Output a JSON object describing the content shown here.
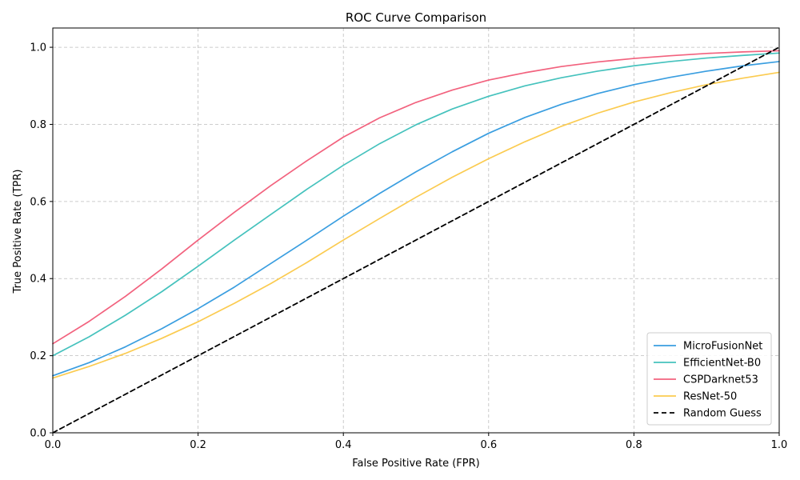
{
  "chart_data": {
    "type": "line",
    "title": "ROC Curve Comparison",
    "xlabel": "False Positive Rate (FPR)",
    "ylabel": "True Positive Rate (TPR)",
    "xlim": [
      0,
      1
    ],
    "ylim": [
      0,
      1.05
    ],
    "xticks": [
      "0.0",
      "0.2",
      "0.4",
      "0.6",
      "0.8",
      "1.0"
    ],
    "yticks": [
      "0.0",
      "0.2",
      "0.4",
      "0.6",
      "0.8",
      "1.0"
    ],
    "grid": true,
    "legend_position": "lower-right",
    "x": [
      0.0,
      0.05,
      0.1,
      0.15,
      0.2,
      0.25,
      0.3,
      0.35,
      0.4,
      0.45,
      0.5,
      0.55,
      0.6,
      0.65,
      0.7,
      0.75,
      0.8,
      0.85,
      0.9,
      0.95,
      1.0
    ],
    "series": [
      {
        "name": "MicroFusionNet",
        "color": "#3a9ee0",
        "values": [
          0.148,
          0.182,
          0.223,
          0.27,
          0.322,
          0.378,
          0.439,
          0.5,
          0.562,
          0.621,
          0.677,
          0.729,
          0.777,
          0.818,
          0.852,
          0.88,
          0.903,
          0.922,
          0.938,
          0.952,
          0.963
        ]
      },
      {
        "name": "EfficientNet-B0",
        "color": "#45c2bd",
        "values": [
          0.2,
          0.249,
          0.305,
          0.366,
          0.432,
          0.5,
          0.566,
          0.632,
          0.694,
          0.75,
          0.799,
          0.84,
          0.873,
          0.9,
          0.921,
          0.938,
          0.952,
          0.963,
          0.972,
          0.979,
          0.985
        ]
      },
      {
        "name": "CSPDarknet53",
        "color": "#f2627e",
        "values": [
          0.231,
          0.289,
          0.354,
          0.425,
          0.5,
          0.572,
          0.641,
          0.706,
          0.767,
          0.817,
          0.857,
          0.889,
          0.915,
          0.934,
          0.95,
          0.962,
          0.971,
          0.978,
          0.984,
          0.988,
          0.991
        ]
      },
      {
        "name": "ResNet-50",
        "color": "#fbcb50",
        "values": [
          0.142,
          0.172,
          0.206,
          0.245,
          0.288,
          0.336,
          0.387,
          0.442,
          0.5,
          0.556,
          0.611,
          0.663,
          0.711,
          0.755,
          0.795,
          0.829,
          0.858,
          0.882,
          0.903,
          0.92,
          0.935
        ]
      },
      {
        "name": "Random Guess",
        "color": "#000000",
        "dashed": true,
        "values": [
          0.0,
          0.05,
          0.1,
          0.15,
          0.2,
          0.25,
          0.3,
          0.35,
          0.4,
          0.45,
          0.5,
          0.55,
          0.6,
          0.65,
          0.7,
          0.75,
          0.8,
          0.85,
          0.9,
          0.95,
          1.0
        ]
      }
    ]
  }
}
